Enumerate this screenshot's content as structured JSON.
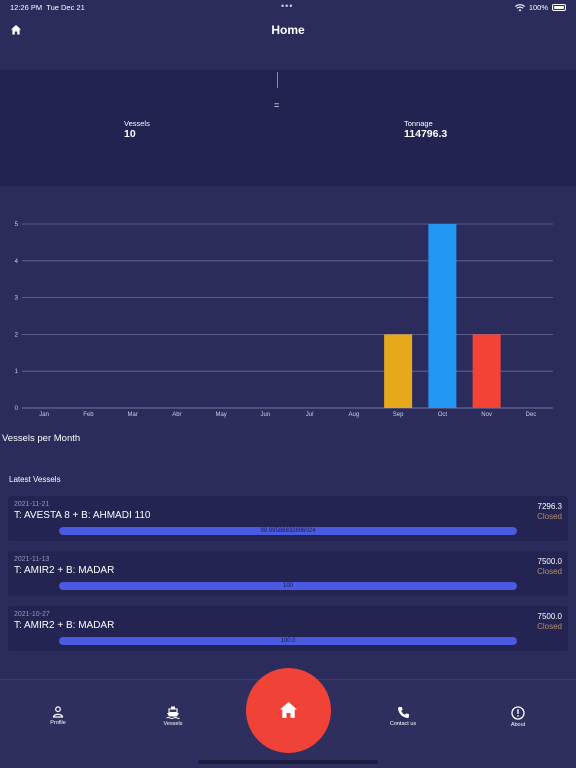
{
  "status_bar": {
    "time": "12:26 PM",
    "date": "Tue Dec 21",
    "battery": "100%"
  },
  "header": {
    "title": "Home"
  },
  "summary": {
    "equals_sign": "=",
    "vessels_label": "Vessels",
    "vessels_value": "10",
    "tonnage_label": "Tonnage",
    "tonnage_value": "114796.3"
  },
  "chart_data": {
    "type": "bar",
    "title": "Vessels per Month",
    "categories": [
      "Jan",
      "Feb",
      "Mar",
      "Abr",
      "May",
      "Jun",
      "Jul",
      "Aug",
      "Sep",
      "Oct",
      "Nov",
      "Dec"
    ],
    "values": [
      0,
      0,
      0,
      0,
      0,
      0,
      0,
      0,
      2,
      5,
      2,
      0
    ],
    "bar_colors": {
      "Sep": "#e6a91c",
      "Oct": "#2196f3",
      "Nov": "#f44336"
    },
    "ylim": [
      0,
      5
    ],
    "yticks": [
      0,
      1,
      2,
      3,
      4,
      5
    ],
    "grid": true,
    "xlabel": "",
    "ylabel": ""
  },
  "latest": {
    "title": "Latest Vessels",
    "vessels": [
      {
        "date": "2021-11-21",
        "name": "T: AVESTA 8 + B: AHMADI 110",
        "tonnage": "7296.3",
        "status": "Closed",
        "progress_text": "99.99588832696024",
        "progress": 99.99588832696024
      },
      {
        "date": "2021-11-13",
        "name": "T: AMIR2 + B: MADAR",
        "tonnage": "7500.0",
        "status": "Closed",
        "progress_text": "100",
        "progress": 100
      },
      {
        "date": "2021-10-27",
        "name": "T: AMIR2 + B: MADAR",
        "tonnage": "7500.0",
        "status": "Closed",
        "progress_text": "100.0",
        "progress": 100
      }
    ]
  },
  "tabbar": {
    "profile": "Profile",
    "vessels": "Vessels",
    "contact": "Contact us",
    "about": "About"
  },
  "icons": {
    "header": "home-icon",
    "profile": "person-icon",
    "vessels": "ship-icon",
    "fab": "home-icon",
    "contact": "phone-icon",
    "about": "info-icon"
  },
  "colors": {
    "background": "#2b2c5c",
    "panel": "#222350",
    "card": "#232451",
    "progress": "#4b5ae2",
    "status_closed": "#b28d66",
    "fab": "#f04237"
  }
}
